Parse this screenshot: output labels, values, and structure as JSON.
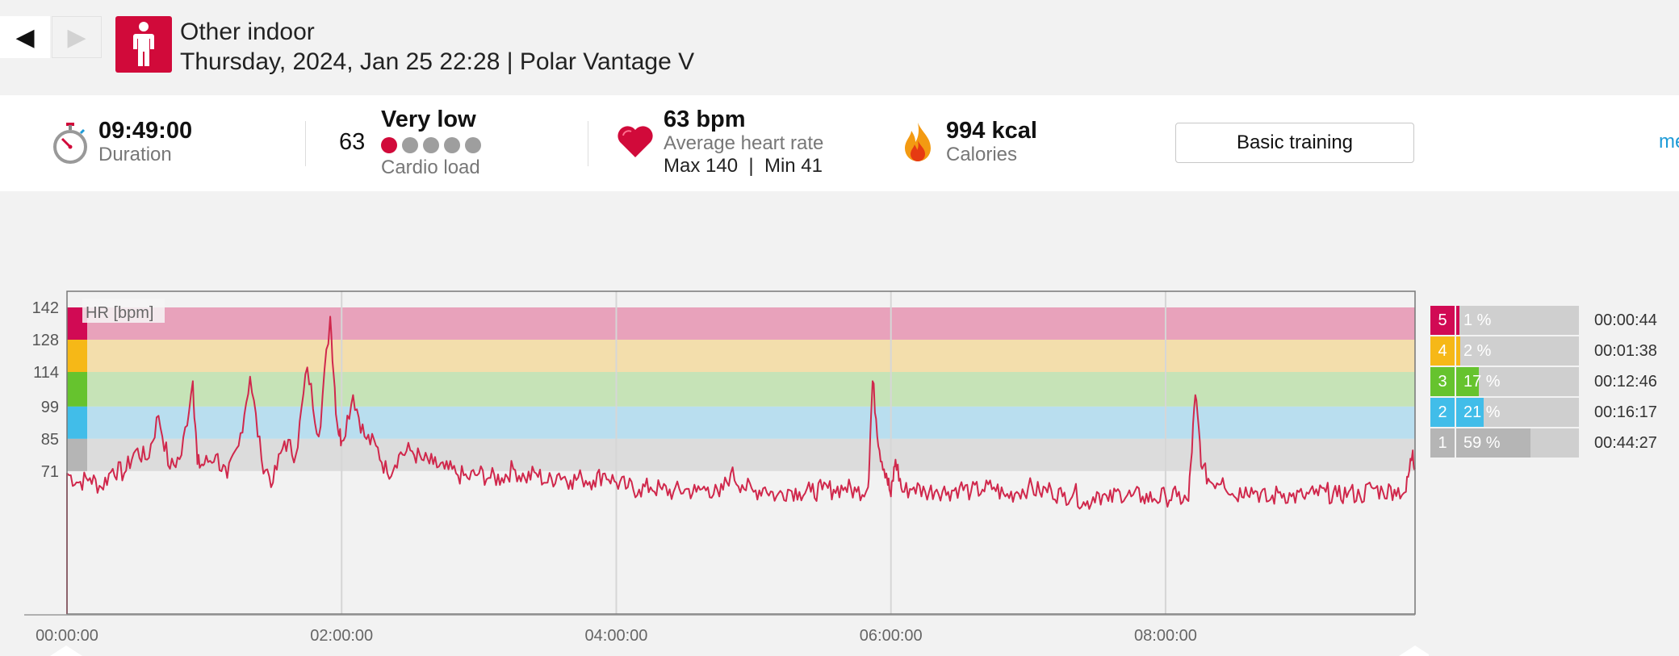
{
  "header": {
    "sport": "Other indoor",
    "subtitle": "Thursday, 2024, Jan 25 22:28 | Polar Vantage V",
    "prev_glyph": "◀",
    "next_glyph": "▶",
    "sport_icon": "person-standing-icon"
  },
  "summary": {
    "duration": {
      "value": "09:49:00",
      "label": "Duration",
      "icon": "stopwatch-icon"
    },
    "cardio": {
      "value": "63",
      "level": "Very low",
      "label": "Cardio load",
      "dots_on": 1,
      "dots_total": 5
    },
    "heart": {
      "value": "63 bpm",
      "label": "Average heart rate",
      "max_min": "Max 140  |  Min 41",
      "icon": "heart-icon"
    },
    "calories": {
      "value": "994 kcal",
      "label": "Calories",
      "icon": "flame-icon"
    },
    "training_button": "Basic training",
    "more_link": "me"
  },
  "chart_data": {
    "type": "line",
    "ylabel": "HR [bpm]",
    "yticks": [
      142,
      128,
      114,
      99,
      85,
      71
    ],
    "ylim": [
      9,
      149
    ],
    "xticks": [
      "00:00:00",
      "02:00:00",
      "04:00:00",
      "06:00:00",
      "08:00:00"
    ],
    "xlim_minutes": [
      0,
      589
    ],
    "zones": [
      {
        "zone": 5,
        "from": 128,
        "to": 142,
        "color": "#e8a2bb"
      },
      {
        "zone": 4,
        "from": 114,
        "to": 128,
        "color": "#f3deac"
      },
      {
        "zone": 3,
        "from": 99,
        "to": 114,
        "color": "#c6e3b7"
      },
      {
        "zone": 2,
        "from": 85,
        "to": 99,
        "color": "#b9deef"
      },
      {
        "zone": 1,
        "from": 71,
        "to": 85,
        "color": "#dcdcdc"
      }
    ],
    "series": [
      {
        "color": "#d0284c",
        "points": [
          [
            0,
            70
          ],
          [
            5,
            66
          ],
          [
            10,
            68
          ],
          [
            15,
            64
          ],
          [
            20,
            72
          ],
          [
            25,
            70
          ],
          [
            30,
            80
          ],
          [
            35,
            76
          ],
          [
            40,
            95
          ],
          [
            45,
            72
          ],
          [
            50,
            78
          ],
          [
            55,
            110
          ],
          [
            57,
            74
          ],
          [
            60,
            74
          ],
          [
            65,
            78
          ],
          [
            70,
            68
          ],
          [
            75,
            82
          ],
          [
            80,
            112
          ],
          [
            85,
            76
          ],
          [
            90,
            66
          ],
          [
            95,
            84
          ],
          [
            100,
            78
          ],
          [
            105,
            116
          ],
          [
            110,
            86
          ],
          [
            115,
            138
          ],
          [
            118,
            92
          ],
          [
            120,
            84
          ],
          [
            125,
            104
          ],
          [
            130,
            86
          ],
          [
            135,
            82
          ],
          [
            140,
            70
          ],
          [
            145,
            78
          ],
          [
            150,
            80
          ],
          [
            155,
            76
          ],
          [
            160,
            74
          ],
          [
            165,
            72
          ],
          [
            170,
            70
          ],
          [
            175,
            68
          ],
          [
            180,
            70
          ],
          [
            185,
            68
          ],
          [
            190,
            68
          ],
          [
            195,
            72
          ],
          [
            200,
            68
          ],
          [
            205,
            70
          ],
          [
            210,
            66
          ],
          [
            215,
            70
          ],
          [
            220,
            67
          ],
          [
            225,
            68
          ],
          [
            230,
            67
          ],
          [
            235,
            70
          ],
          [
            240,
            66
          ],
          [
            245,
            64
          ],
          [
            250,
            63
          ],
          [
            255,
            64
          ],
          [
            260,
            63
          ],
          [
            265,
            62
          ],
          [
            270,
            63
          ],
          [
            275,
            62
          ],
          [
            280,
            64
          ],
          [
            285,
            60
          ],
          [
            290,
            70
          ],
          [
            295,
            65
          ],
          [
            300,
            62
          ],
          [
            305,
            64
          ],
          [
            310,
            60
          ],
          [
            315,
            63
          ],
          [
            320,
            62
          ],
          [
            325,
            62
          ],
          [
            330,
            63
          ],
          [
            335,
            63
          ],
          [
            340,
            64
          ],
          [
            345,
            62
          ],
          [
            350,
            64
          ],
          [
            352,
            110
          ],
          [
            355,
            80
          ],
          [
            358,
            70
          ],
          [
            360,
            60
          ],
          [
            362,
            76
          ],
          [
            365,
            62
          ],
          [
            370,
            64
          ],
          [
            375,
            62
          ],
          [
            380,
            63
          ],
          [
            385,
            62
          ],
          [
            390,
            64
          ],
          [
            395,
            62
          ],
          [
            400,
            63
          ],
          [
            405,
            64
          ],
          [
            410,
            60
          ],
          [
            415,
            62
          ],
          [
            420,
            64
          ],
          [
            425,
            62
          ],
          [
            430,
            63
          ],
          [
            435,
            60
          ],
          [
            440,
            62
          ],
          [
            445,
            56
          ],
          [
            450,
            62
          ],
          [
            455,
            58
          ],
          [
            460,
            62
          ],
          [
            465,
            60
          ],
          [
            470,
            60
          ],
          [
            475,
            59
          ],
          [
            480,
            60
          ],
          [
            485,
            60
          ],
          [
            490,
            58
          ],
          [
            493,
            104
          ],
          [
            496,
            72
          ],
          [
            500,
            66
          ],
          [
            505,
            68
          ],
          [
            510,
            60
          ],
          [
            515,
            64
          ],
          [
            520,
            62
          ],
          [
            525,
            58
          ],
          [
            530,
            62
          ],
          [
            535,
            60
          ],
          [
            540,
            60
          ],
          [
            545,
            61
          ],
          [
            550,
            62
          ],
          [
            555,
            60
          ],
          [
            560,
            62
          ],
          [
            565,
            60
          ],
          [
            570,
            64
          ],
          [
            575,
            62
          ],
          [
            580,
            63
          ],
          [
            585,
            62
          ],
          [
            588,
            80
          ],
          [
            589,
            72
          ]
        ]
      }
    ]
  },
  "zone_legend": [
    {
      "zone": "5",
      "pct": "1 %",
      "frac": 0.01,
      "time": "00:00:44",
      "color": "#d10a54"
    },
    {
      "zone": "4",
      "pct": "2 %",
      "frac": 0.02,
      "time": "00:01:38",
      "color": "#f6b817"
    },
    {
      "zone": "3",
      "pct": "17 %",
      "frac": 0.17,
      "time": "00:12:46",
      "color": "#66c32e"
    },
    {
      "zone": "2",
      "pct": "21 %",
      "frac": 0.21,
      "time": "00:16:17",
      "color": "#41bde9"
    },
    {
      "zone": "1",
      "pct": "59 %",
      "frac": 0.59,
      "time": "00:44:27",
      "color": "#b5b5b5"
    }
  ]
}
